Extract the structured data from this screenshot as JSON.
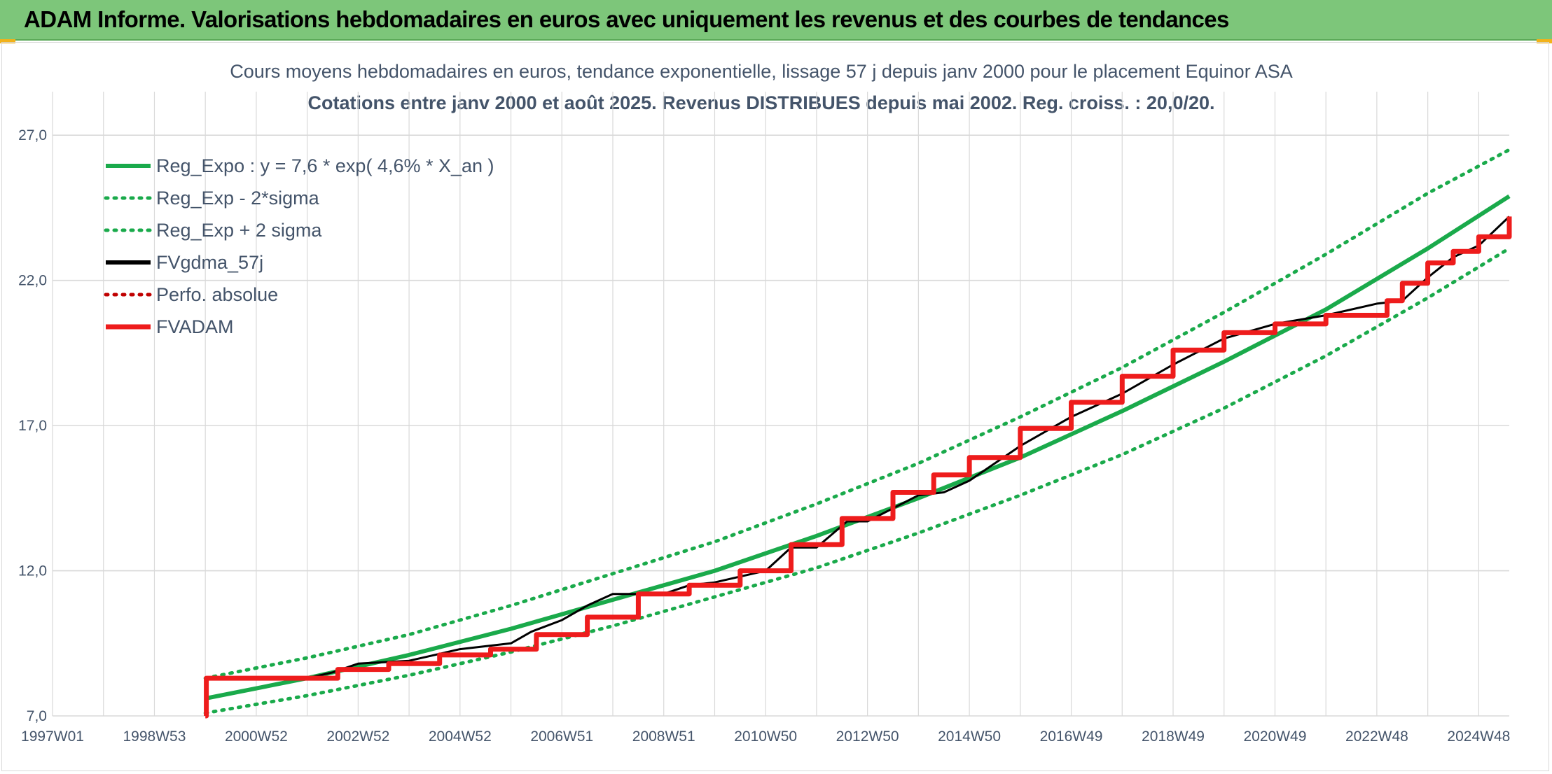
{
  "header": {
    "title": "ADAM Informe. Valorisations hebdomadaires en euros avec uniquement les revenus et des courbes de tendances"
  },
  "colors": {
    "header_bg": "#7dc67a",
    "trend": "#1aaa4b",
    "price": "#000000",
    "adam": "#ee1c1c",
    "perf": "#c00000",
    "grid": "#d9d9d9",
    "text": "#44546a"
  },
  "chart_data": {
    "type": "line",
    "title": "Cours moyens hebdomadaires en euros, tendance exponentielle, lissage 57 j depuis janv 2000 pour le placement Equinor ASA",
    "subtitle": "Cotations entre janv 2000 et août 2025. Revenus DISTRIBUES depuis mai 2002. Reg. croiss. : 20,0/20.",
    "xlabel": "",
    "ylabel": "",
    "x_range": [
      1997.0,
      2025.6
    ],
    "ylim": [
      7.0,
      28.5
    ],
    "y_ticks": [
      7.0,
      12.0,
      17.0,
      22.0,
      27.0
    ],
    "y_tick_labels": [
      "7,0",
      "12,0",
      "17,0",
      "22,0",
      "27,0"
    ],
    "x_ticks": [
      1997.0,
      1999.0,
      2001.0,
      2003.0,
      2005.0,
      2007.0,
      2009.0,
      2011.0,
      2013.0,
      2015.0,
      2017.0,
      2019.0,
      2021.0,
      2023.0,
      2025.0
    ],
    "x_tick_labels": [
      "1997W01",
      "1998W53",
      "2000W52",
      "2002W52",
      "2004W52",
      "2006W51",
      "2008W51",
      "2010W50",
      "2012W50",
      "2014W50",
      "2016W49",
      "2018W49",
      "2020W49",
      "2022W48",
      "2024W48"
    ],
    "grid": true,
    "legend_position": "top-left",
    "series": [
      {
        "name": "Reg_Expo : y = 7,6 * exp( 4,6% *  X_an )",
        "style": "solid",
        "color": "#1aaa4b",
        "x": [
          2000.0,
          2002.0,
          2004.0,
          2006.0,
          2008.0,
          2010.0,
          2012.0,
          2014.0,
          2016.0,
          2018.0,
          2020.0,
          2022.0,
          2024.0,
          2025.6
        ],
        "y": [
          7.6,
          8.3,
          9.1,
          10.0,
          11.0,
          12.0,
          13.2,
          14.5,
          15.9,
          17.5,
          19.2,
          21.0,
          23.1,
          24.9
        ]
      },
      {
        "name": "Reg_Exp - 2*sigma",
        "style": "dotted",
        "color": "#1aaa4b",
        "x": [
          2000.0,
          2002.0,
          2004.0,
          2006.0,
          2008.0,
          2010.0,
          2012.0,
          2014.0,
          2016.0,
          2018.0,
          2020.0,
          2022.0,
          2024.0,
          2025.6
        ],
        "y": [
          7.1,
          7.7,
          8.4,
          9.2,
          10.1,
          11.1,
          12.1,
          13.3,
          14.6,
          16.0,
          17.6,
          19.4,
          21.4,
          23.1
        ]
      },
      {
        "name": "Reg_Exp + 2 sigma",
        "style": "dotted",
        "color": "#1aaa4b",
        "x": [
          2000.0,
          2002.0,
          2004.0,
          2006.0,
          2008.0,
          2010.0,
          2012.0,
          2014.0,
          2016.0,
          2018.0,
          2020.0,
          2022.0,
          2024.0,
          2025.6
        ],
        "y": [
          8.3,
          9.0,
          9.8,
          10.8,
          11.9,
          13.0,
          14.3,
          15.7,
          17.3,
          19.0,
          20.9,
          22.9,
          25.0,
          26.5
        ]
      },
      {
        "name": "FVgdma_57j",
        "style": "solid",
        "color": "#000000",
        "x": [
          2000.0,
          2000.05,
          2002.0,
          2002.5,
          2003.0,
          2004.0,
          2004.5,
          2005.0,
          2006.0,
          2006.4,
          2007.0,
          2007.5,
          2008.0,
          2009.0,
          2009.5,
          2010.0,
          2011.0,
          2011.5,
          2012.0,
          2012.6,
          2013.0,
          2014.0,
          2014.5,
          2015.0,
          2016.0,
          2017.0,
          2018.0,
          2019.0,
          2020.0,
          2021.0,
          2022.0,
          2023.0,
          2023.5,
          2024.0,
          2024.5,
          2025.0,
          2025.6
        ],
        "y": [
          7.0,
          8.3,
          8.3,
          8.5,
          8.8,
          8.9,
          9.1,
          9.3,
          9.5,
          9.9,
          10.3,
          10.8,
          11.2,
          11.2,
          11.5,
          11.6,
          12.0,
          12.8,
          12.8,
          13.7,
          13.7,
          14.6,
          14.7,
          15.1,
          16.3,
          17.3,
          18.1,
          19.1,
          20.0,
          20.5,
          20.8,
          21.2,
          21.3,
          22.1,
          22.8,
          23.2,
          24.2
        ]
      },
      {
        "name": "Perfo. absolue",
        "style": "dotted",
        "color": "#c00000",
        "x": [],
        "y": []
      },
      {
        "name": "FVADAM",
        "style": "solid",
        "color": "#ee1c1c",
        "x": [
          2000.0,
          2000.02,
          2001.6,
          2002.6,
          2003.6,
          2004.6,
          2005.6,
          2006.5,
          2007.5,
          2008.5,
          2009.5,
          2010.5,
          2011.5,
          2012.5,
          2013.5,
          2014.3,
          2015.0,
          2016.0,
          2017.0,
          2018.0,
          2019.0,
          2020.0,
          2021.0,
          2022.0,
          2023.2,
          2023.5,
          2024.0,
          2024.5,
          2025.0,
          2025.6
        ],
        "y": [
          7.0,
          8.3,
          8.3,
          8.6,
          8.8,
          9.1,
          9.3,
          9.8,
          10.4,
          11.2,
          11.5,
          12.0,
          12.9,
          13.8,
          14.7,
          15.3,
          15.9,
          16.9,
          17.8,
          18.7,
          19.6,
          20.2,
          20.5,
          20.8,
          21.3,
          21.9,
          22.6,
          23.0,
          23.5,
          24.2
        ]
      }
    ]
  }
}
